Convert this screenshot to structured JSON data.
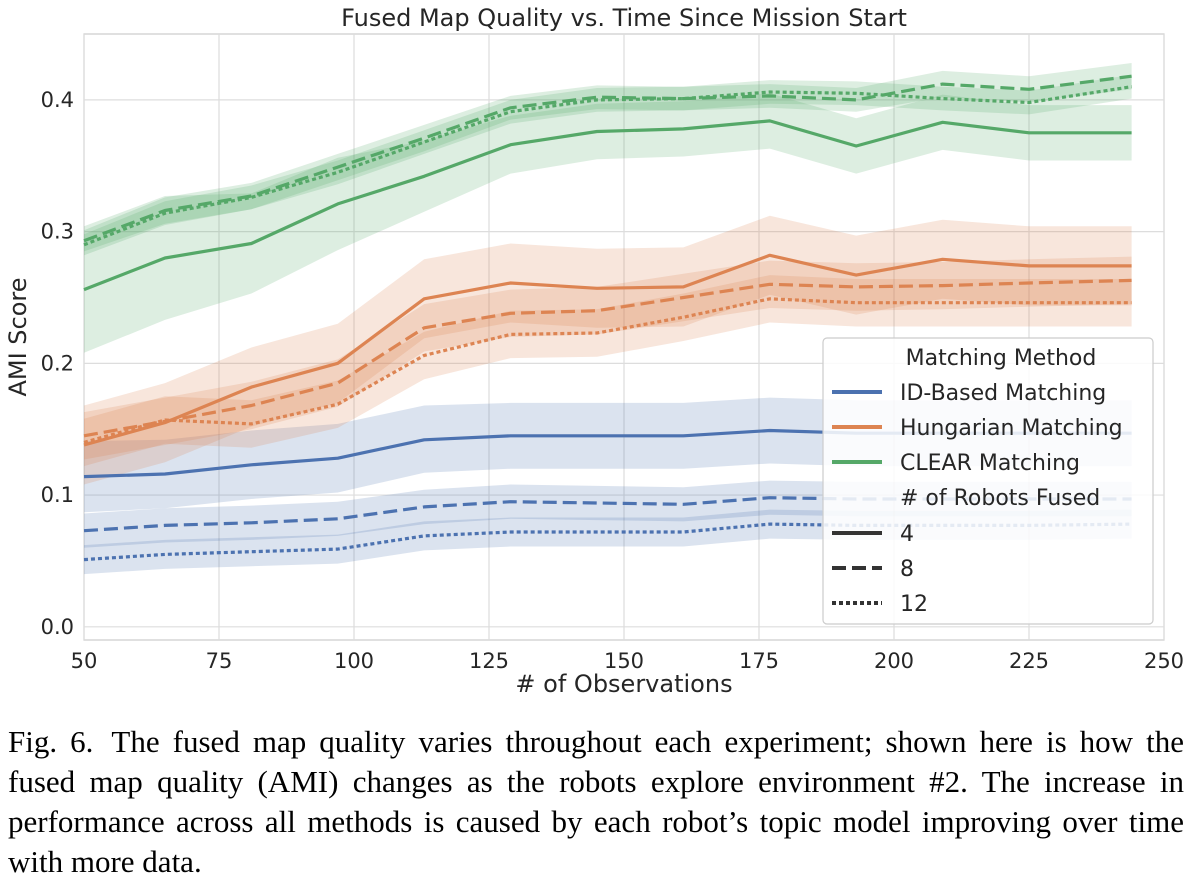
{
  "chart_data": {
    "type": "line",
    "title": "Fused Map Quality vs. Time Since Mission Start",
    "xlabel": "# of Observations",
    "ylabel": "AMI Score",
    "xlim": [
      50,
      250
    ],
    "ylim": [
      -0.01,
      0.45
    ],
    "xticks": [
      50,
      75,
      100,
      125,
      150,
      175,
      200,
      225,
      250
    ],
    "yticks": [
      0.0,
      0.1,
      0.2,
      0.3,
      0.4
    ],
    "xtick_labels": [
      "50",
      "75",
      "100",
      "125",
      "150",
      "175",
      "200",
      "225",
      "250"
    ],
    "ytick_labels": [
      "0.0",
      "0.1",
      "0.2",
      "0.3",
      "0.4"
    ],
    "grid": true,
    "legend": {
      "placement": "lower-right",
      "title1": "Matching Method",
      "methods": [
        "ID-Based Matching",
        "Hungarian Matching",
        "CLEAR Matching"
      ],
      "title2": "# of Robots Fused",
      "sizes": [
        "4",
        "8",
        "12"
      ]
    },
    "x": [
      50,
      65,
      81,
      97,
      113,
      129,
      145,
      161,
      177,
      193,
      209,
      225,
      244
    ],
    "series": [
      {
        "method": "ID-Based Matching",
        "robots": "4",
        "color": "#4c72b0",
        "dash": "solid",
        "values": [
          0.114,
          0.116,
          0.123,
          0.128,
          0.142,
          0.145,
          0.145,
          0.145,
          0.149,
          0.147,
          0.147,
          0.147,
          0.147
        ],
        "lower": [
          0.087,
          0.09,
          0.097,
          0.102,
          0.117,
          0.12,
          0.12,
          0.12,
          0.124,
          0.122,
          0.122,
          0.122,
          0.122
        ],
        "upper": [
          0.141,
          0.142,
          0.149,
          0.154,
          0.168,
          0.17,
          0.17,
          0.17,
          0.174,
          0.172,
          0.172,
          0.172,
          0.172
        ]
      },
      {
        "method": "ID-Based Matching",
        "robots": "8",
        "color": "#4c72b0",
        "dash": "dashed",
        "values": [
          0.073,
          0.077,
          0.079,
          0.082,
          0.091,
          0.095,
          0.094,
          0.093,
          0.098,
          0.097,
          0.097,
          0.097,
          0.097
        ],
        "lower": [
          0.06,
          0.064,
          0.066,
          0.069,
          0.078,
          0.082,
          0.081,
          0.08,
          0.085,
          0.084,
          0.084,
          0.084,
          0.084
        ],
        "upper": [
          0.086,
          0.09,
          0.092,
          0.095,
          0.104,
          0.108,
          0.107,
          0.106,
          0.111,
          0.11,
          0.11,
          0.11,
          0.11
        ]
      },
      {
        "method": "ID-Based Matching",
        "robots": "12",
        "color": "#4c72b0",
        "dash": "dotted",
        "values": [
          0.051,
          0.055,
          0.057,
          0.059,
          0.069,
          0.072,
          0.072,
          0.072,
          0.078,
          0.077,
          0.077,
          0.077,
          0.078
        ],
        "lower": [
          0.04,
          0.044,
          0.046,
          0.048,
          0.058,
          0.061,
          0.061,
          0.061,
          0.067,
          0.066,
          0.066,
          0.066,
          0.067
        ],
        "upper": [
          0.062,
          0.066,
          0.068,
          0.07,
          0.08,
          0.083,
          0.083,
          0.083,
          0.089,
          0.088,
          0.088,
          0.088,
          0.089
        ]
      },
      {
        "method": "Hungarian Matching",
        "robots": "4",
        "color": "#dd8452",
        "dash": "solid",
        "values": [
          0.138,
          0.155,
          0.182,
          0.2,
          0.249,
          0.261,
          0.257,
          0.258,
          0.282,
          0.267,
          0.279,
          0.274,
          0.274
        ],
        "lower": [
          0.108,
          0.125,
          0.152,
          0.17,
          0.219,
          0.231,
          0.227,
          0.228,
          0.252,
          0.237,
          0.249,
          0.244,
          0.244
        ],
        "upper": [
          0.168,
          0.185,
          0.212,
          0.23,
          0.279,
          0.291,
          0.287,
          0.288,
          0.312,
          0.297,
          0.309,
          0.304,
          0.304
        ]
      },
      {
        "method": "Hungarian Matching",
        "robots": "8",
        "color": "#dd8452",
        "dash": "dashed",
        "values": [
          0.145,
          0.156,
          0.168,
          0.185,
          0.227,
          0.238,
          0.24,
          0.25,
          0.26,
          0.258,
          0.259,
          0.261,
          0.263
        ],
        "lower": [
          0.127,
          0.138,
          0.15,
          0.167,
          0.209,
          0.22,
          0.222,
          0.232,
          0.242,
          0.24,
          0.241,
          0.243,
          0.245
        ],
        "upper": [
          0.163,
          0.174,
          0.186,
          0.203,
          0.245,
          0.256,
          0.258,
          0.268,
          0.278,
          0.276,
          0.277,
          0.279,
          0.281
        ]
      },
      {
        "method": "Hungarian Matching",
        "robots": "12",
        "color": "#dd8452",
        "dash": "dotted",
        "values": [
          0.14,
          0.157,
          0.154,
          0.169,
          0.206,
          0.222,
          0.223,
          0.235,
          0.249,
          0.246,
          0.246,
          0.246,
          0.246
        ],
        "lower": [
          0.122,
          0.139,
          0.136,
          0.151,
          0.188,
          0.204,
          0.205,
          0.217,
          0.231,
          0.228,
          0.228,
          0.228,
          0.228
        ],
        "upper": [
          0.158,
          0.175,
          0.172,
          0.187,
          0.224,
          0.24,
          0.241,
          0.253,
          0.267,
          0.264,
          0.264,
          0.264,
          0.264
        ]
      },
      {
        "method": "CLEAR Matching",
        "robots": "4",
        "color": "#55a868",
        "dash": "solid",
        "values": [
          0.256,
          0.28,
          0.291,
          0.321,
          0.342,
          0.366,
          0.376,
          0.378,
          0.384,
          0.365,
          0.383,
          0.375,
          0.375
        ],
        "lower": [
          0.208,
          0.233,
          0.253,
          0.286,
          0.315,
          0.344,
          0.355,
          0.357,
          0.363,
          0.344,
          0.362,
          0.354,
          0.354
        ],
        "upper": [
          0.304,
          0.327,
          0.329,
          0.356,
          0.369,
          0.388,
          0.397,
          0.399,
          0.405,
          0.386,
          0.404,
          0.396,
          0.396
        ]
      },
      {
        "method": "CLEAR Matching",
        "robots": "8",
        "color": "#55a868",
        "dash": "dashed",
        "values": [
          0.293,
          0.316,
          0.327,
          0.349,
          0.371,
          0.394,
          0.402,
          0.401,
          0.403,
          0.4,
          0.412,
          0.408,
          0.418
        ],
        "lower": [
          0.285,
          0.306,
          0.317,
          0.339,
          0.361,
          0.385,
          0.393,
          0.392,
          0.394,
          0.391,
          0.402,
          0.398,
          0.408
        ],
        "upper": [
          0.301,
          0.326,
          0.337,
          0.359,
          0.381,
          0.403,
          0.411,
          0.41,
          0.412,
          0.409,
          0.422,
          0.418,
          0.428
        ]
      },
      {
        "method": "CLEAR Matching",
        "robots": "12",
        "color": "#55a868",
        "dash": "dotted",
        "values": [
          0.29,
          0.314,
          0.326,
          0.345,
          0.368,
          0.391,
          0.4,
          0.401,
          0.406,
          0.405,
          0.401,
          0.398,
          0.41
        ],
        "lower": [
          0.282,
          0.305,
          0.317,
          0.336,
          0.359,
          0.382,
          0.391,
          0.392,
          0.397,
          0.396,
          0.392,
          0.389,
          0.401
        ],
        "upper": [
          0.298,
          0.323,
          0.335,
          0.354,
          0.377,
          0.4,
          0.409,
          0.41,
          0.415,
          0.414,
          0.41,
          0.407,
          0.419
        ]
      }
    ]
  },
  "caption": {
    "label": "Fig. 6.",
    "text": "The fused map quality varies throughout each experiment; shown here is how the fused map quality (AMI) changes as the robots explore environment #2. The increase in performance across all methods is caused by each robot’s topic model improving over time with more data."
  }
}
